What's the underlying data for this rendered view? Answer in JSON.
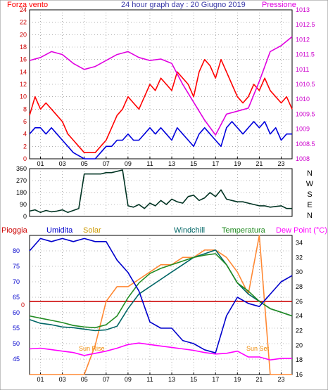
{
  "colors": {
    "wind_speed": "#ff0000",
    "wind_gust": "#0000dd",
    "pressure": "#e000e0",
    "direction": "#003322",
    "humidity": "#0000cc",
    "solar": "#ff8833",
    "windchill": "#006666",
    "temperature": "#228b22",
    "dew_point": "#ff00ff",
    "rain": "#cc0000",
    "frame": "#000000",
    "grid": "#7a7a7a",
    "sunrise_text": "#ee8800"
  },
  "chart_data": [
    {
      "type": "line",
      "id": "wind-pressure",
      "title": "24 hour graph day : 20 Giugno 2019",
      "left_label": "Forza vento",
      "right_label": "Pressione",
      "x_ticks": [
        "01",
        "03",
        "05",
        "07",
        "09",
        "11",
        "13",
        "15",
        "17",
        "19",
        "21",
        "23"
      ],
      "y_left_ticks": [
        0,
        2,
        4,
        6,
        8,
        10,
        12,
        14,
        16,
        18,
        20,
        22,
        24
      ],
      "y_left_range": [
        0,
        24
      ],
      "y_right_ticks": [
        "1008",
        "1008.5",
        "1009",
        "1009.5",
        "1010",
        "1010.5",
        "1011",
        "1011.5",
        "1012",
        "1012.5",
        "1013"
      ],
      "y_right_range": [
        1008,
        1013
      ],
      "series": [
        {
          "key": "wind_speed",
          "hours": [
            0,
            0.5,
            1,
            1.5,
            2,
            2.5,
            3,
            3.5,
            4,
            4.5,
            5,
            5.5,
            6,
            6.5,
            7,
            7.5,
            8,
            8.5,
            9,
            9.5,
            10,
            10.5,
            11,
            11.5,
            12,
            12.5,
            13,
            13.5,
            14,
            14.5,
            15,
            15.5,
            16,
            16.5,
            17,
            17.5,
            18,
            18.5,
            19,
            19.5,
            20,
            20.5,
            21,
            21.5,
            22,
            22.5,
            23,
            23.5,
            24
          ],
          "values": [
            7,
            10,
            8,
            9,
            8,
            7,
            6,
            4,
            3,
            2,
            1,
            1,
            1,
            2,
            3,
            5,
            7,
            8,
            10,
            9,
            8,
            10,
            12,
            11,
            13,
            12,
            11,
            14,
            13,
            12,
            10,
            14,
            16,
            15,
            13,
            16,
            14,
            12,
            10,
            9,
            10,
            12,
            11,
            13,
            11,
            10,
            9,
            10,
            8
          ]
        },
        {
          "key": "wind_gust",
          "hours": [
            0,
            0.5,
            1,
            1.5,
            2,
            2.5,
            3,
            3.5,
            4,
            4.5,
            5,
            5.5,
            6,
            6.5,
            7,
            7.5,
            8,
            8.5,
            9,
            9.5,
            10,
            10.5,
            11,
            11.5,
            12,
            12.5,
            13,
            13.5,
            14,
            14.5,
            15,
            15.5,
            16,
            16.5,
            17,
            17.5,
            18,
            18.5,
            19,
            19.5,
            20,
            20.5,
            21,
            21.5,
            22,
            22.5,
            23,
            23.5,
            24
          ],
          "values": [
            4,
            5,
            5,
            4,
            5,
            4,
            3,
            2,
            1,
            0.5,
            0,
            0,
            0,
            1,
            2,
            2,
            3,
            3,
            4,
            3,
            3,
            4,
            5,
            4,
            5,
            4,
            3,
            5,
            4,
            3,
            2,
            4,
            5,
            4,
            3,
            2,
            5,
            6,
            5,
            4,
            5,
            6,
            5,
            6,
            4,
            5,
            3,
            4,
            4
          ]
        },
        {
          "key": "pressure",
          "hours": [
            0,
            1,
            2,
            3,
            4,
            5,
            6,
            7,
            8,
            9,
            10,
            11,
            12,
            13,
            14,
            15,
            16,
            17,
            18,
            19,
            20,
            21,
            22,
            23,
            24
          ],
          "values": [
            1011.3,
            1011.4,
            1011.6,
            1011.5,
            1011.2,
            1011.0,
            1011.1,
            1011.3,
            1011.5,
            1011.6,
            1011.4,
            1011.3,
            1011.35,
            1011.2,
            1010.5,
            1009.9,
            1009.3,
            1008.8,
            1009.5,
            1009.6,
            1009.7,
            1010.6,
            1011.6,
            1011.8,
            1012.1
          ]
        }
      ]
    },
    {
      "type": "line",
      "id": "wind-direction",
      "y_right_labels": [
        "N",
        "W",
        "S",
        "E",
        "N"
      ],
      "y_left_ticks": [
        0,
        90,
        180,
        270,
        360
      ],
      "y_range": [
        0,
        360
      ],
      "series": [
        {
          "key": "direction",
          "hours": [
            0,
            0.5,
            1,
            1.5,
            2,
            2.5,
            3,
            3.5,
            4,
            4.5,
            5,
            5.5,
            6,
            6.5,
            7,
            7.5,
            8,
            8.5,
            9,
            9.5,
            10,
            10.5,
            11,
            11.5,
            12,
            12.5,
            13,
            13.5,
            14,
            14.5,
            15,
            15.5,
            16,
            16.5,
            17,
            17.5,
            18,
            18.5,
            19,
            19.5,
            20,
            20.5,
            21,
            21.5,
            22,
            22.5,
            23,
            23.5,
            24
          ],
          "values": [
            40,
            50,
            30,
            45,
            35,
            40,
            50,
            30,
            45,
            60,
            320,
            320,
            320,
            320,
            330,
            330,
            340,
            350,
            80,
            70,
            90,
            60,
            100,
            80,
            120,
            90,
            130,
            110,
            100,
            150,
            160,
            120,
            140,
            180,
            150,
            200,
            130,
            120,
            110,
            110,
            100,
            90,
            80,
            80,
            70,
            75,
            80,
            60,
            60
          ]
        }
      ]
    },
    {
      "type": "line",
      "id": "humidity-temperature",
      "legend": [
        "Pioggia",
        "Umidita",
        "Solar",
        "Windchill",
        "Temperatura",
        "Dew Point (°C)"
      ],
      "y_left_ticks": [
        45,
        50,
        55,
        60,
        65,
        70,
        75,
        80
      ],
      "y_left_range": [
        40,
        85
      ],
      "y_right_ticks": [
        16,
        18,
        20,
        22,
        24,
        26,
        28,
        30,
        32,
        34
      ],
      "y_right_range": [
        16,
        35
      ],
      "rain_zero_label": "0",
      "annotations": [
        "Sun Rise",
        "Sun Set"
      ],
      "x_ticks": [
        "01",
        "03",
        "05",
        "07",
        "09",
        "11",
        "13",
        "15",
        "17",
        "19",
        "21",
        "23"
      ],
      "series": [
        {
          "key": "humidity",
          "axis": "left",
          "hours": [
            0,
            1,
            2,
            3,
            4,
            5,
            6,
            7,
            8,
            9,
            10,
            11,
            12,
            13,
            14,
            15,
            16,
            17,
            18,
            19,
            20,
            21,
            22,
            23,
            24
          ],
          "values": [
            80,
            84,
            83,
            84,
            83,
            84,
            83,
            83,
            77,
            73,
            67,
            57,
            55,
            55,
            51,
            50,
            48,
            47,
            59,
            65,
            63,
            62,
            66,
            70,
            72
          ]
        },
        {
          "key": "solar",
          "axis": "right",
          "hours": [
            0,
            1,
            2,
            3,
            4,
            5,
            6,
            7,
            8,
            9,
            10,
            11,
            12,
            13,
            14,
            15,
            16,
            17,
            18,
            19,
            20,
            21,
            22,
            23,
            24
          ],
          "values": [
            16,
            16,
            16,
            16,
            16,
            16,
            20,
            26,
            28,
            28,
            29,
            30,
            31,
            31,
            32,
            32,
            33,
            33,
            32,
            30,
            27,
            35,
            16,
            16,
            16
          ]
        },
        {
          "key": "windchill",
          "axis": "right",
          "hours": [
            0,
            1,
            2,
            3,
            4,
            5,
            6,
            7,
            8,
            9,
            10,
            11,
            12,
            13,
            14,
            15,
            16,
            17,
            18,
            19,
            20,
            21,
            22,
            23,
            24
          ],
          "values": [
            23.5,
            23,
            22.8,
            22.5,
            22.4,
            22.2,
            22.0,
            22.1,
            22.6,
            25,
            27,
            28,
            29,
            30,
            31,
            32,
            32.5,
            33,
            31,
            28.5,
            27,
            26,
            25,
            24.5,
            24
          ]
        },
        {
          "key": "temperature",
          "axis": "right",
          "hours": [
            0,
            1,
            2,
            3,
            4,
            5,
            6,
            7,
            8,
            9,
            10,
            11,
            12,
            13,
            14,
            15,
            16,
            17,
            18,
            19,
            20,
            21,
            22,
            23,
            24
          ],
          "values": [
            24,
            23.7,
            23.4,
            23.1,
            22.7,
            22.5,
            22.4,
            22.8,
            24,
            26.5,
            28.5,
            29.8,
            30.5,
            31,
            31.5,
            32,
            32.3,
            32.5,
            31,
            28.5,
            27.4,
            26,
            25,
            24.5,
            24
          ]
        },
        {
          "key": "dew_point",
          "axis": "right",
          "hours": [
            0,
            1,
            2,
            3,
            4,
            5,
            6,
            7,
            8,
            9,
            10,
            11,
            12,
            13,
            14,
            15,
            16,
            17,
            18,
            19,
            20,
            21,
            22,
            23,
            24
          ],
          "values": [
            19.5,
            19.6,
            19.4,
            19.2,
            19.0,
            18.6,
            18.9,
            19.2,
            19.6,
            20.1,
            20.3,
            20.1,
            19.9,
            19.7,
            19.5,
            19.3,
            19.0,
            18.8,
            18.9,
            19.2,
            18.4,
            18.4,
            18.0,
            18.2,
            18.2
          ]
        },
        {
          "key": "rain",
          "axis": "right",
          "hours": [
            0,
            24
          ],
          "values": [
            26,
            26
          ]
        }
      ]
    }
  ]
}
